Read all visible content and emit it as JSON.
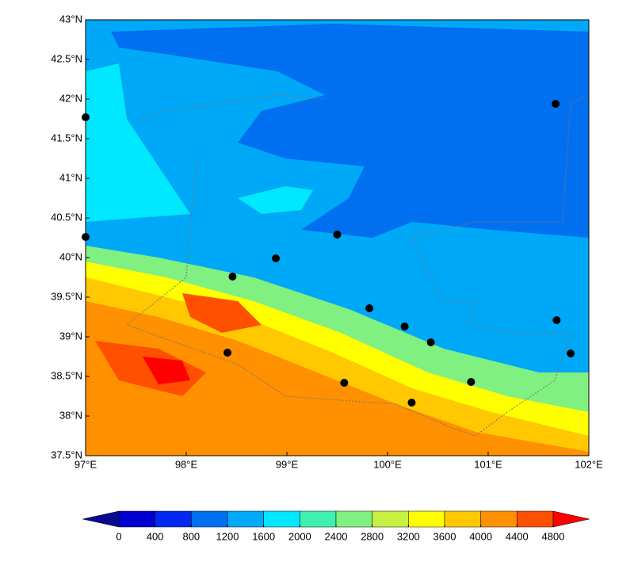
{
  "chart_data": {
    "type": "scatter",
    "x": [
      97.0,
      97.0,
      101.67,
      99.5,
      98.89,
      98.46,
      99.82,
      100.17,
      100.43,
      101.68,
      101.82,
      98.41,
      99.57,
      100.83,
      100.24
    ],
    "values": [
      41.77,
      40.26,
      41.94,
      40.29,
      39.99,
      39.76,
      39.36,
      39.13,
      38.93,
      39.21,
      38.79,
      38.8,
      38.42,
      38.43,
      38.17
    ],
    "color": "#000000",
    "xlim": [
      97,
      102
    ],
    "ylim": [
      37.5,
      43
    ],
    "xticks": [
      {
        "value": 97,
        "label": "97°E"
      },
      {
        "value": 98,
        "label": "98°E"
      },
      {
        "value": 99,
        "label": "99°E"
      },
      {
        "value": 100,
        "label": "100°E"
      },
      {
        "value": 101,
        "label": "101°E"
      },
      {
        "value": 102,
        "label": "102°E"
      }
    ],
    "yticks": [
      {
        "value": 37.5,
        "label": "37.5°N"
      },
      {
        "value": 38,
        "label": "38°N"
      },
      {
        "value": 38.5,
        "label": "38.5°N"
      },
      {
        "value": 39,
        "label": "39°N"
      },
      {
        "value": 39.5,
        "label": "39.5°N"
      },
      {
        "value": 40,
        "label": "40°N"
      },
      {
        "value": 40.5,
        "label": "40.5°N"
      },
      {
        "value": 41,
        "label": "41°N"
      },
      {
        "value": 41.5,
        "label": "41.5°N"
      },
      {
        "value": 42,
        "label": "42°N"
      },
      {
        "value": 42.5,
        "label": "42.5°N"
      },
      {
        "value": 43,
        "label": "43°N"
      }
    ],
    "colorbar": {
      "ticks": [
        0,
        400,
        800,
        1200,
        1600,
        2000,
        2400,
        2800,
        3200,
        3600,
        4000,
        4400,
        4800
      ],
      "colors": [
        "#0a0a90",
        "#0000d0",
        "#0028f0",
        "#0070f0",
        "#00a8f8",
        "#00e8ff",
        "#40f0b0",
        "#80f080",
        "#c8f040",
        "#ffff00",
        "#ffc800",
        "#ff9000",
        "#ff5000",
        "#ff0000"
      ]
    }
  }
}
